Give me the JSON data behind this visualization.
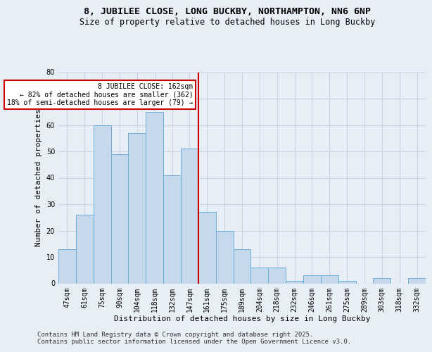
{
  "title1": "8, JUBILEE CLOSE, LONG BUCKBY, NORTHAMPTON, NN6 6NP",
  "title2": "Size of property relative to detached houses in Long Buckby",
  "xlabel": "Distribution of detached houses by size in Long Buckby",
  "ylabel": "Number of detached properties",
  "categories": [
    "47sqm",
    "61sqm",
    "75sqm",
    "90sqm",
    "104sqm",
    "118sqm",
    "132sqm",
    "147sqm",
    "161sqm",
    "175sqm",
    "189sqm",
    "204sqm",
    "218sqm",
    "232sqm",
    "246sqm",
    "261sqm",
    "275sqm",
    "289sqm",
    "303sqm",
    "318sqm",
    "332sqm"
  ],
  "values": [
    13,
    26,
    60,
    49,
    57,
    65,
    41,
    51,
    27,
    20,
    13,
    6,
    6,
    1,
    3,
    3,
    1,
    0,
    2,
    0,
    2
  ],
  "bar_color": "#c5d8ec",
  "bar_edge_color": "#6aaed6",
  "vline_color": "#cc0000",
  "annotation_text": "8 JUBILEE CLOSE: 162sqm\n← 82% of detached houses are smaller (362)\n18% of semi-detached houses are larger (79) →",
  "annotation_box_color": "#ffffff",
  "annotation_box_edge_color": "#cc0000",
  "ylim": [
    0,
    80
  ],
  "yticks": [
    0,
    10,
    20,
    30,
    40,
    50,
    60,
    70,
    80
  ],
  "grid_color": "#c8d4e4",
  "bg_color": "#e8eef6",
  "footer_line1": "Contains HM Land Registry data © Crown copyright and database right 2025.",
  "footer_line2": "Contains public sector information licensed under the Open Government Licence v3.0.",
  "title1_fontsize": 9.5,
  "title2_fontsize": 8.5,
  "tick_fontsize": 7,
  "label_fontsize": 8,
  "footer_fontsize": 6.5
}
